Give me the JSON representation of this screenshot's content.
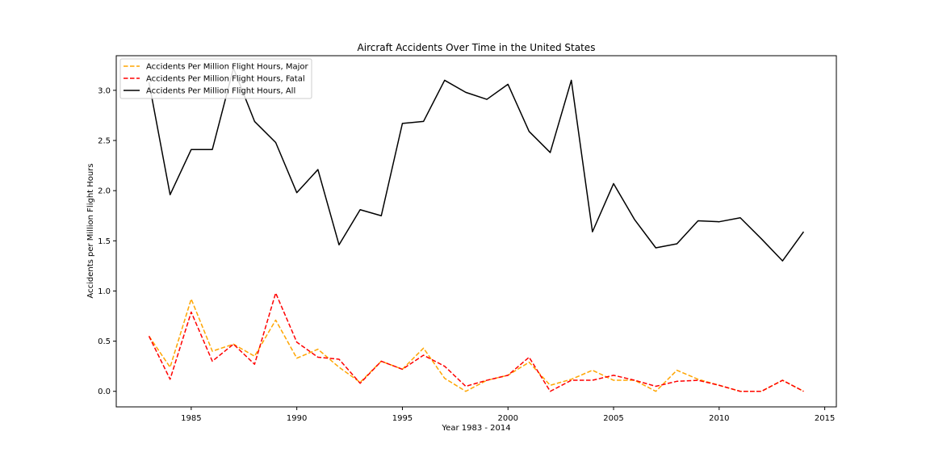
{
  "chart_data": {
    "type": "line",
    "title": "Aircraft Accidents Over Time in the United States",
    "xlabel": "Year 1983 - 2014",
    "ylabel": "Accidents per Million Flight Hours",
    "xlim": [
      1981.45,
      2015.55
    ],
    "ylim": [
      -0.155,
      3.345
    ],
    "xticks": [
      1985,
      1990,
      1995,
      2000,
      2005,
      2010,
      2015
    ],
    "xtick_labels": [
      "1985",
      "1990",
      "1995",
      "2000",
      "2005",
      "2010",
      "2015"
    ],
    "yticks": [
      0.0,
      0.5,
      1.0,
      1.5,
      2.0,
      2.5,
      3.0
    ],
    "ytick_labels": [
      "0.0",
      "0.5",
      "1.0",
      "1.5",
      "2.0",
      "2.5",
      "3.0"
    ],
    "grid": false,
    "legend_position": "top-left",
    "x": [
      1983,
      1984,
      1985,
      1986,
      1987,
      1988,
      1989,
      1990,
      1991,
      1992,
      1993,
      1994,
      1995,
      1996,
      1997,
      1998,
      1999,
      2000,
      2001,
      2002,
      2003,
      2004,
      2005,
      2006,
      2007,
      2008,
      2009,
      2010,
      2011,
      2012,
      2013,
      2014
    ],
    "series": [
      {
        "name": "Accidents Per Million Flight Hours, Major",
        "color": "#ffa500",
        "style": "dashed",
        "values": [
          0.55,
          0.24,
          0.92,
          0.4,
          0.47,
          0.35,
          0.71,
          0.33,
          0.42,
          0.24,
          0.09,
          0.3,
          0.22,
          0.43,
          0.13,
          0.0,
          0.11,
          0.16,
          0.29,
          0.06,
          0.12,
          0.21,
          0.11,
          0.11,
          0.0,
          0.21,
          0.12,
          0.06,
          0.0,
          0.0,
          0.11,
          0.0
        ]
      },
      {
        "name": "Accidents Per Million Flight Hours, Fatal",
        "color": "#ff0000",
        "style": "dashed",
        "values": [
          0.55,
          0.12,
          0.79,
          0.3,
          0.47,
          0.27,
          0.98,
          0.49,
          0.34,
          0.32,
          0.08,
          0.3,
          0.22,
          0.36,
          0.25,
          0.05,
          0.11,
          0.16,
          0.34,
          0.0,
          0.11,
          0.11,
          0.16,
          0.11,
          0.05,
          0.1,
          0.11,
          0.06,
          0.0,
          0.0,
          0.11,
          0.0
        ]
      },
      {
        "name": "Accidents Per Million Flight Hours, All",
        "color": "#000000",
        "style": "solid",
        "values": [
          3.08,
          1.96,
          2.41,
          2.41,
          3.22,
          2.69,
          2.48,
          1.98,
          2.21,
          1.46,
          1.81,
          1.75,
          2.67,
          2.69,
          3.1,
          2.98,
          2.91,
          3.06,
          2.59,
          2.38,
          3.1,
          1.59,
          2.07,
          1.71,
          1.43,
          1.47,
          1.7,
          1.69,
          1.73,
          1.52,
          1.3,
          1.59
        ]
      }
    ]
  }
}
